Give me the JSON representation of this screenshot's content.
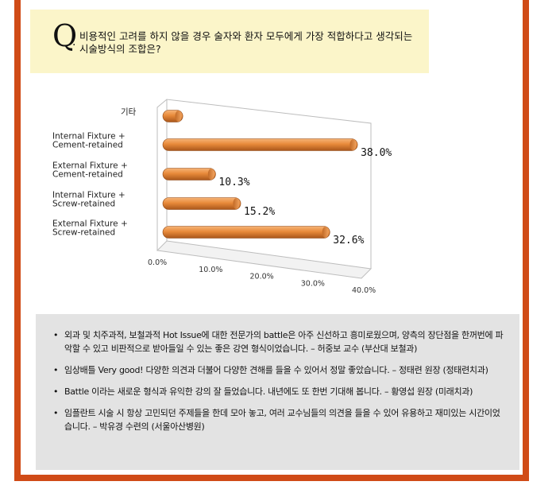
{
  "question": {
    "letter": "Q",
    "dot": ".",
    "text": "비용적인 고려를 하지 않을 경우 술자와 환자 모두에게 가장 적합하다고 생각되는 시술방식의 조합은?"
  },
  "chart_data": {
    "type": "bar",
    "orientation": "horizontal",
    "style": "3d-cylinder",
    "categories": [
      [
        "기타"
      ],
      [
        "Internal Fixture +",
        "Cement-retained"
      ],
      [
        "External Fixture +",
        "Cement-retained"
      ],
      [
        "Internal Fixture +",
        "Screw-retained"
      ],
      [
        "External Fixture +",
        "Screw-retained"
      ]
    ],
    "values": [
      3.9,
      38.0,
      10.3,
      15.2,
      32.6
    ],
    "data_labels": [
      "",
      "38.0%",
      "10.3%",
      "15.2%",
      "32.6%"
    ],
    "x_ticks": [
      "0.0%",
      "10.0%",
      "20.0%",
      "30.0%",
      "40.0%"
    ],
    "xlim": [
      0,
      40
    ],
    "bar_color": "#e88a3a",
    "title": "",
    "xlabel": "",
    "ylabel": ""
  },
  "comments": [
    "외과 및 치주과적, 보철과적 Hot Issue에 대한 전문가의 battle은 아주 신선하고 흥미로웠으며, 양측의 장단점을 한꺼번에 파악할 수 있고 비판적으로 받아들일 수 있는 좋은 강연 형식이었습니다. – 허중보 교수 (부산대 보철과)",
    "임상배틀 Very good! 다양한 의견과 더불어 다양한 견해를 들을 수 있어서 정말 좋았습니다. – 정태련 원장 (정태련치과)",
    "Battle 이라는 새로운 형식과 유익한 강의 잘 들었습니다. 내년에도 또 한번 기대해 봅니다. – 황영섭 원장 (미래치과)",
    "임플란트 시술 시 항상 고민되던 주제들을 한데 모아 놓고, 여러 교수님들의 의견을 들을 수 있어 유용하고 재미있는 시간이었습니다. – 박유경 수련의 (서울아산병원)"
  ]
}
